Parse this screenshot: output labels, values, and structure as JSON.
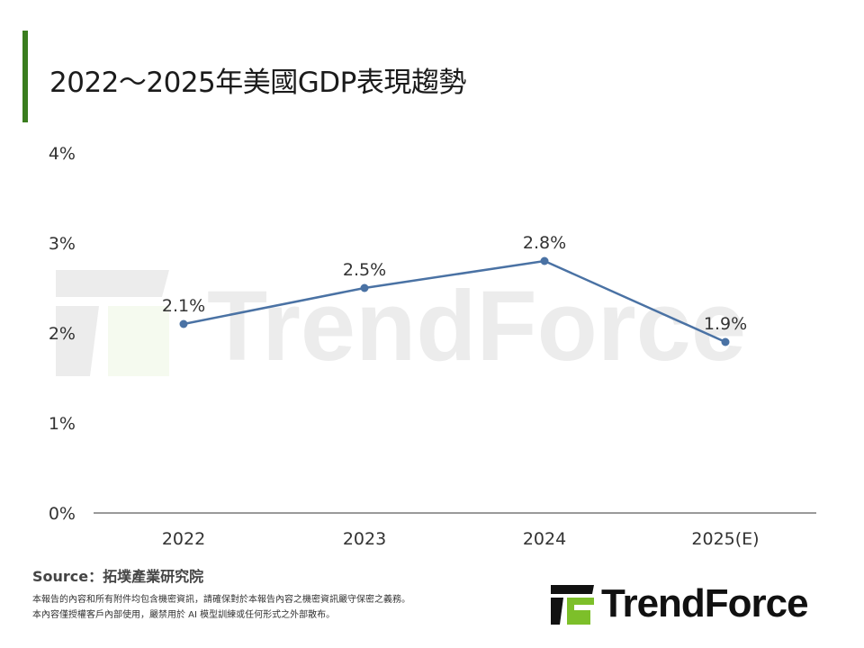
{
  "title": "2022～2025年美國GDP表現趨勢",
  "chart_data": {
    "type": "line",
    "categories": [
      "2022",
      "2023",
      "2024",
      "2025(E)"
    ],
    "values": [
      2.1,
      2.5,
      2.8,
      1.9
    ],
    "data_labels": [
      "2.1%",
      "2.5%",
      "2.8%",
      "1.9%"
    ],
    "ylim": [
      0,
      4
    ],
    "yticks": [
      "0%",
      "1%",
      "2%",
      "3%",
      "4%"
    ],
    "grid": false,
    "line_color": "#4a72a4"
  },
  "watermark": "TrendForce",
  "footer": {
    "source": "Source：拓墣產業研究院",
    "note_line1": "本報告的內容和所有附件均包含機密資訊，請確保對於本報告內容之機密資訊嚴守保密之義務。",
    "note_line2": "本內容僅授權客戶內部使用，嚴禁用於 AI 模型訓練或任何形式之外部散布。"
  },
  "logo": {
    "text": "TrendForce",
    "accent_color": "#7dbf2a"
  }
}
